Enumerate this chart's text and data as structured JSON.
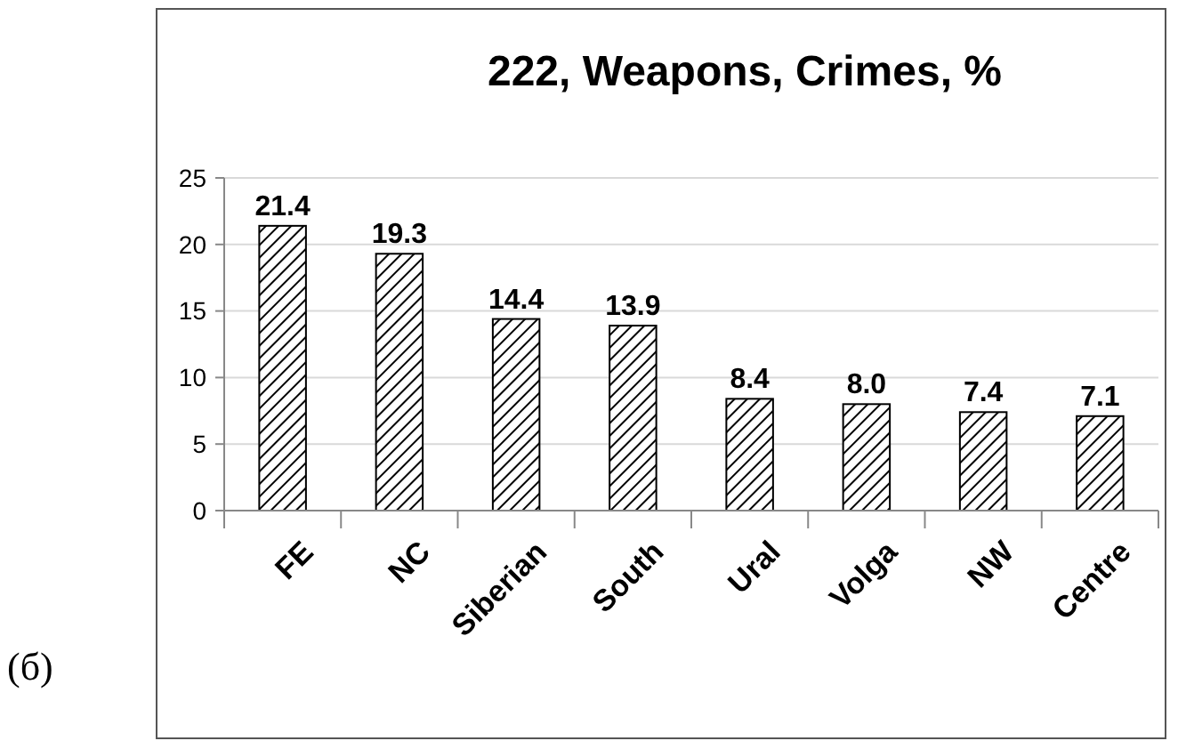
{
  "chart_data": {
    "type": "bar",
    "title": "222, Weapons, Crimes, %",
    "categories": [
      "FE",
      "NC",
      "Siberian",
      "South",
      "Ural",
      "Volga",
      "NW",
      "Centre"
    ],
    "values": [
      21.4,
      19.3,
      14.4,
      13.9,
      8.4,
      8.0,
      7.4,
      7.1
    ],
    "value_labels": [
      "21.4",
      "19.3",
      "14.4",
      "13.9",
      "8.4",
      "8.0",
      "7.4",
      "7.1"
    ],
    "color": "#000000",
    "ylim": [
      0,
      25
    ],
    "yticks": [
      0,
      5,
      10,
      15,
      20,
      25
    ],
    "grid": "y",
    "annotations": [
      "(б)"
    ]
  }
}
